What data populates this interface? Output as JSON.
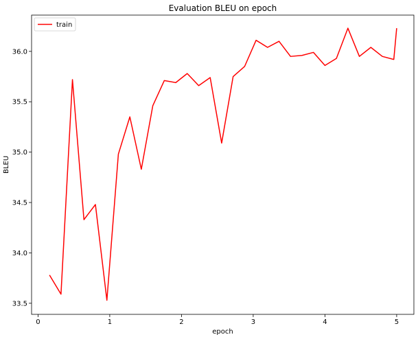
{
  "chart_data": {
    "type": "line",
    "title": "Evaluation BLEU on epoch",
    "xlabel": "epoch",
    "ylabel": "BLEU",
    "xlim": [
      -0.09,
      5.24
    ],
    "ylim": [
      33.39,
      36.36
    ],
    "xticks": [
      0,
      1,
      2,
      3,
      4,
      5
    ],
    "xtick_labels": [
      "0",
      "1",
      "2",
      "3",
      "4",
      "5"
    ],
    "yticks": [
      33.5,
      34.0,
      34.5,
      35.0,
      35.5,
      36.0
    ],
    "ytick_labels": [
      "33.5",
      "34.0",
      "34.5",
      "35.0",
      "35.5",
      "36.0"
    ],
    "grid": false,
    "legend_position": "upper left",
    "series": [
      {
        "name": "train",
        "color": "#ff0000",
        "x": [
          0.16,
          0.32,
          0.48,
          0.64,
          0.8,
          0.96,
          1.12,
          1.28,
          1.44,
          1.6,
          1.76,
          1.92,
          2.08,
          2.24,
          2.4,
          2.56,
          2.72,
          2.88,
          3.04,
          3.2,
          3.36,
          3.52,
          3.68,
          3.84,
          4.0,
          4.16,
          4.32,
          4.48,
          4.64,
          4.8,
          4.96,
          5.0
        ],
        "y": [
          33.78,
          33.59,
          35.72,
          34.33,
          34.48,
          33.53,
          34.98,
          35.35,
          34.83,
          35.46,
          35.71,
          35.69,
          35.78,
          35.66,
          35.74,
          35.09,
          35.75,
          35.85,
          36.11,
          36.04,
          36.1,
          35.95,
          35.96,
          35.99,
          35.86,
          35.93,
          36.23,
          35.95,
          36.04,
          35.95,
          35.92,
          36.23
        ]
      }
    ]
  }
}
